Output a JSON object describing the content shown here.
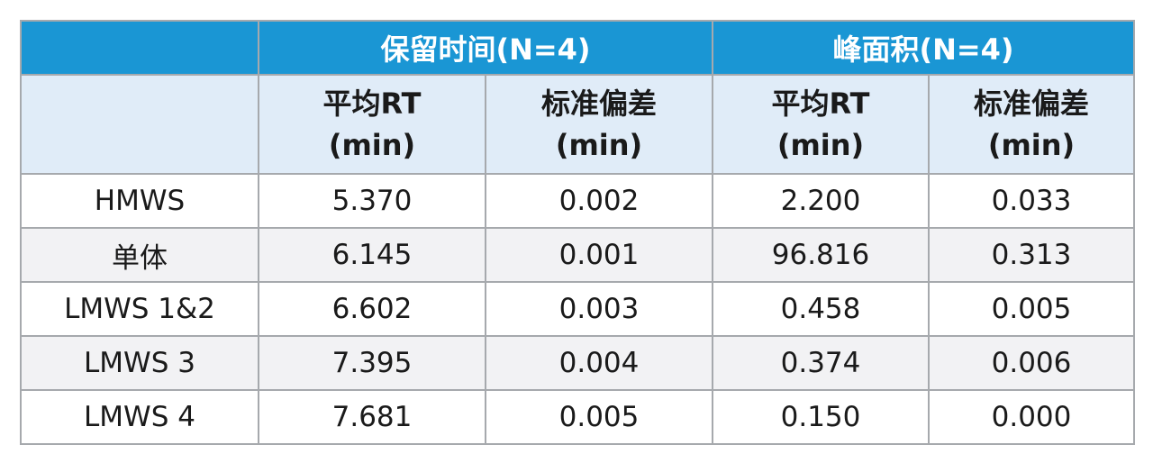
{
  "table": {
    "groups": [
      {
        "label": "保留时间(N=4)"
      },
      {
        "label": "峰面积(N=4)"
      }
    ],
    "subheaders": [
      {
        "line1": "平均RT",
        "line2": "(min)"
      },
      {
        "line1": "标准偏差",
        "line2": "(min)"
      },
      {
        "line1": "平均RT",
        "line2": "(min)"
      },
      {
        "line1": "标准偏差",
        "line2": "(min)"
      }
    ],
    "rows": [
      {
        "label": "HMWS",
        "values": [
          "5.370",
          "0.002",
          "2.200",
          "0.033"
        ]
      },
      {
        "label": "单体",
        "values": [
          "6.145",
          "0.001",
          "96.816",
          "0.313"
        ]
      },
      {
        "label": "LMWS 1&2",
        "values": [
          "6.602",
          "0.003",
          "0.458",
          "0.005"
        ]
      },
      {
        "label": "LMWS 3",
        "values": [
          "7.395",
          "0.004",
          "0.374",
          "0.006"
        ]
      },
      {
        "label": "LMWS 4",
        "values": [
          "7.681",
          "0.005",
          "0.150",
          "0.000"
        ]
      }
    ],
    "colors": {
      "header_bg": "#1a96d4",
      "subheader_bg": "#e0ecf8",
      "alt_row_bg": "#f2f2f4",
      "border": "#a6a9ad"
    }
  }
}
